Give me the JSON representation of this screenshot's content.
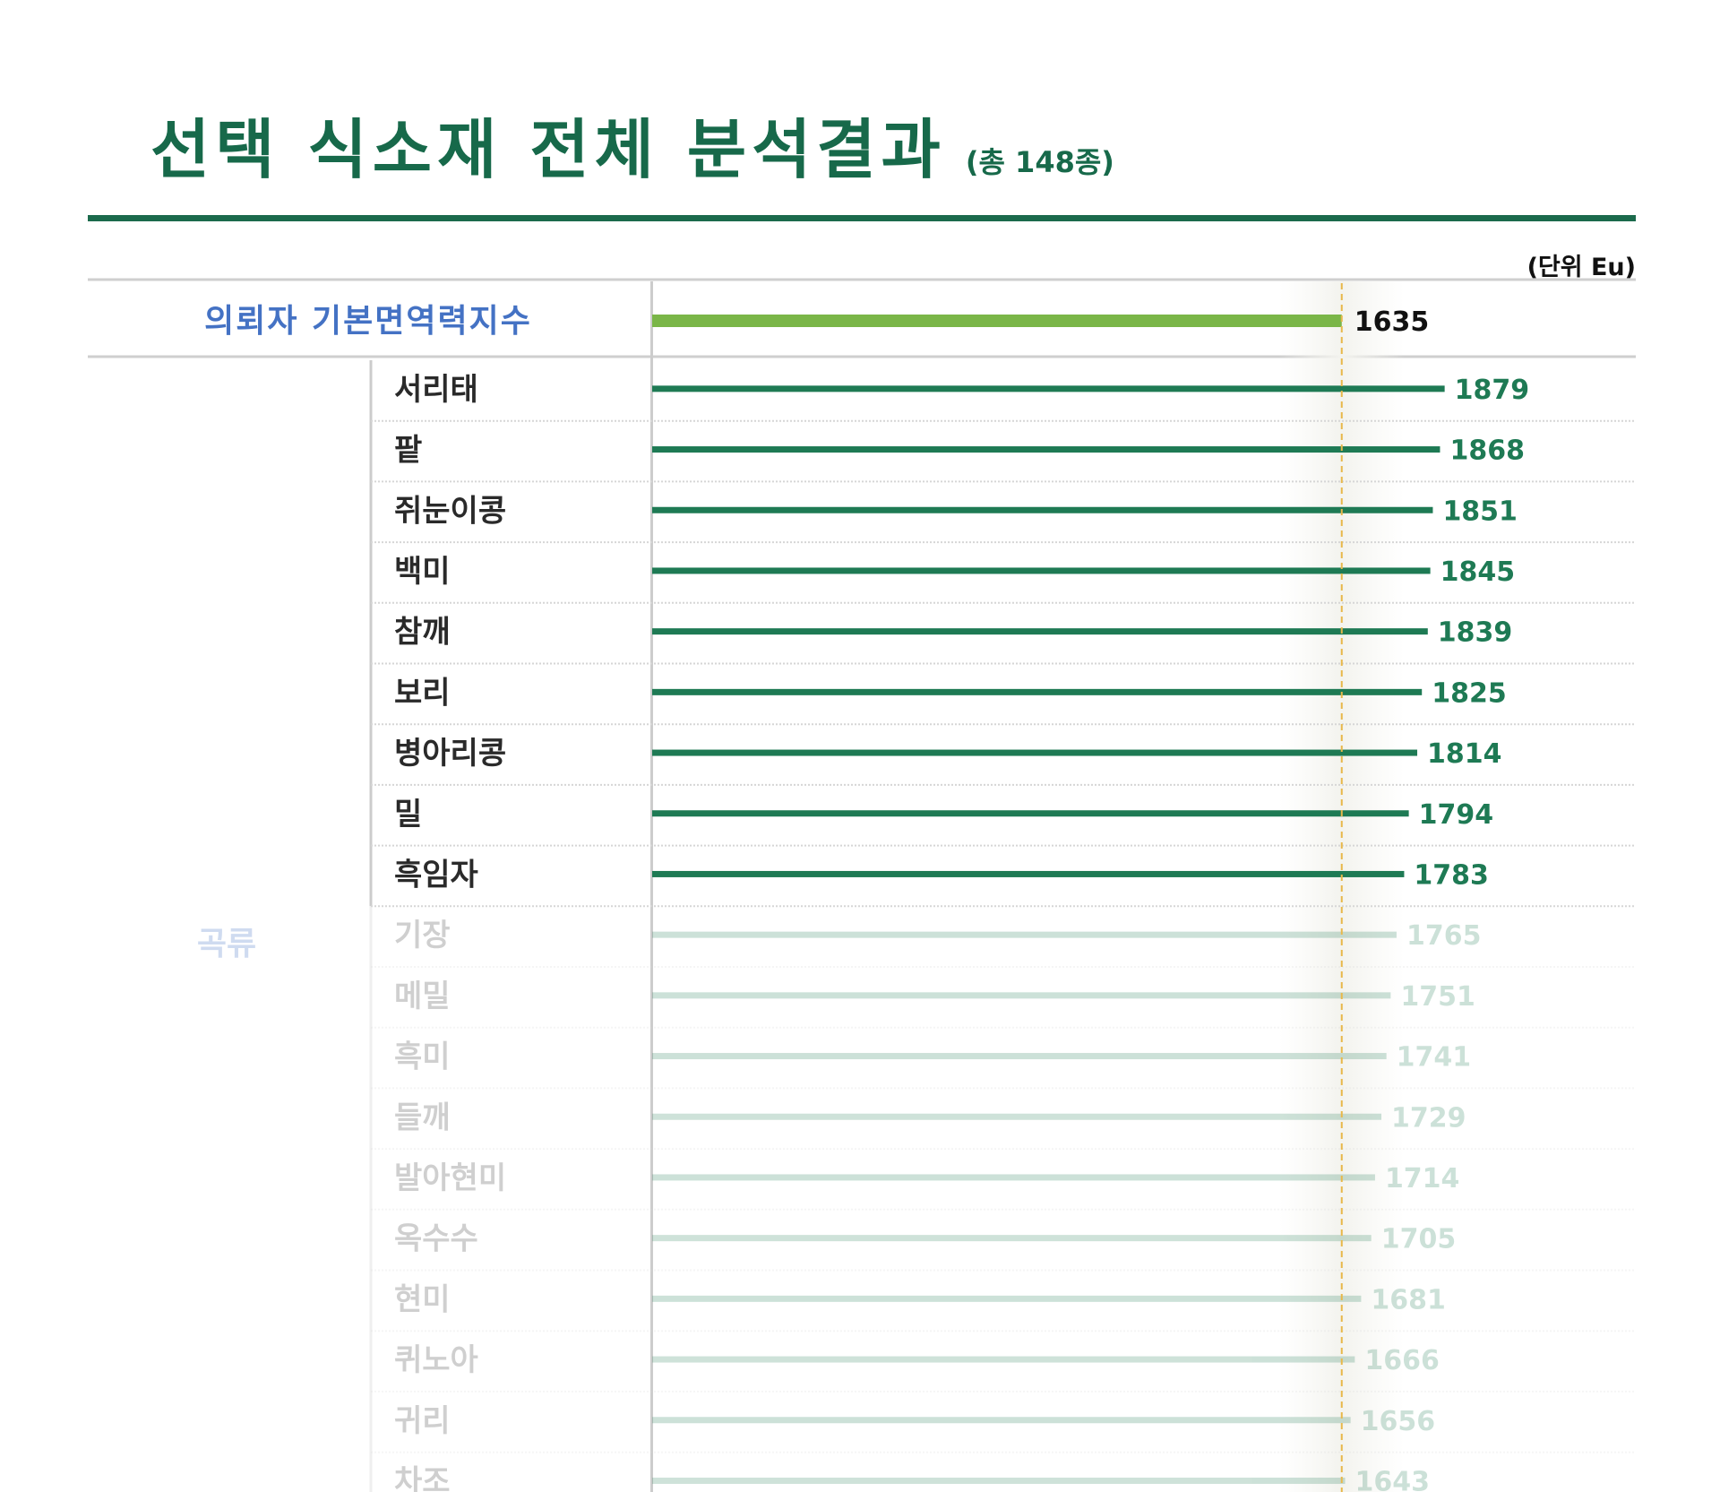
{
  "header": {
    "title": "선택 식소재 전체 분석결과",
    "subtitle": "(총 148종)",
    "unit": "(단위 Eu)"
  },
  "colors": {
    "title": "#17694a",
    "bar": "#1e7a54",
    "reference_bar": "#7ab648",
    "reference_label": "#4472c4",
    "reference_line": "#e8b84a",
    "faded_bar": "#d2e6dc"
  },
  "chart_data": {
    "type": "bar",
    "orientation": "horizontal",
    "reference": {
      "name": "의뢰자 기본면역력지수",
      "value": 1635
    },
    "group": "곡류",
    "categories": [
      "서리태",
      "팥",
      "쥐눈이콩",
      "백미",
      "참깨",
      "보리",
      "병아리콩",
      "밀",
      "흑임자",
      "기장",
      "메밀",
      "흑미",
      "들깨",
      "발아현미",
      "옥수수",
      "현미",
      "퀴노아",
      "귀리",
      "차조"
    ],
    "values": [
      1879,
      1868,
      1851,
      1845,
      1839,
      1825,
      1814,
      1794,
      1783,
      1765,
      1751,
      1741,
      1729,
      1714,
      1705,
      1681,
      1666,
      1656,
      1643
    ],
    "highlighted_count": 9,
    "unit": "Eu",
    "grid": false,
    "legend": "none"
  }
}
